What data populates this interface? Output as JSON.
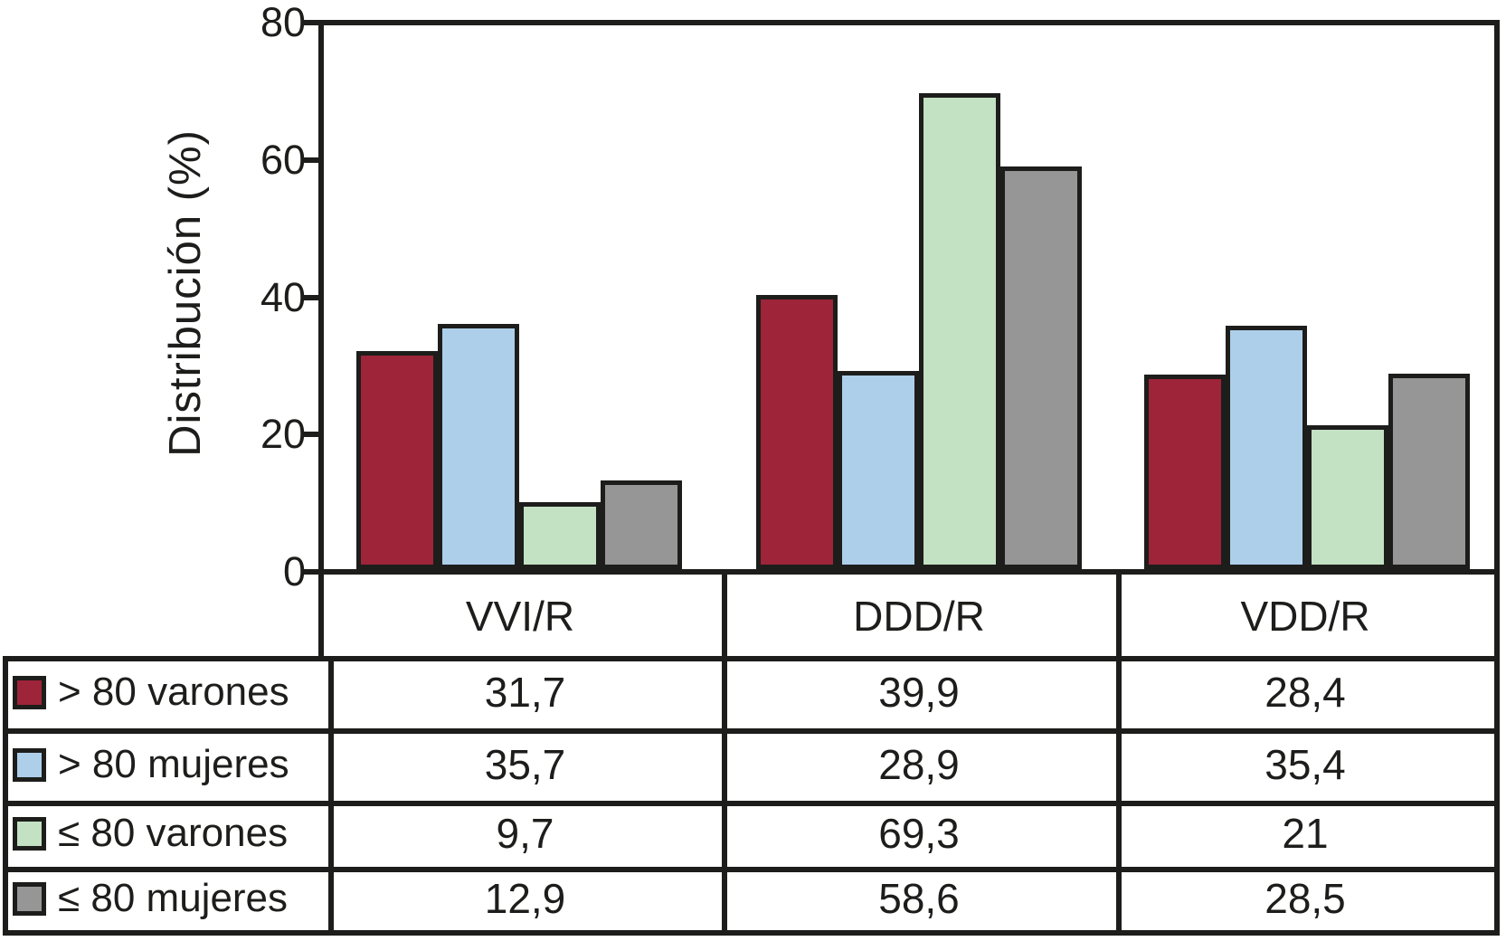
{
  "chart_data": {
    "type": "bar",
    "title": "",
    "xlabel": "",
    "ylabel": "Distribución (%)",
    "ylim": [
      0,
      80
    ],
    "yticks": [
      0,
      20,
      40,
      60,
      80
    ],
    "grid": false,
    "legend_position": "table-below-left-column",
    "categories": [
      "VVI/R",
      "DDD/R",
      "VDD/R"
    ],
    "series": [
      {
        "name": "> 80 varones",
        "color": "#9E2439",
        "values": [
          31.7,
          39.9,
          28.4
        ]
      },
      {
        "name": "> 80 mujeres",
        "color": "#ADCFEA",
        "values": [
          35.7,
          28.9,
          35.4
        ]
      },
      {
        "name": "≤ 80 varones",
        "color": "#C3E1C3",
        "values": [
          9.7,
          69.3,
          21
        ]
      },
      {
        "name": "≤ 80 mujeres",
        "color": "#969696",
        "values": [
          12.9,
          58.6,
          28.5
        ]
      }
    ]
  },
  "axis": {
    "y_tick_labels": [
      "0",
      "20",
      "40",
      "60",
      "80"
    ],
    "y_title": "Distribución (%)"
  },
  "table": {
    "column_headers": [
      "VVI/R",
      "DDD/R",
      "VDD/R"
    ],
    "rows": [
      {
        "label": "> 80 varones",
        "swatch_color": "#9E2439",
        "cells": [
          "31,7",
          "39,9",
          "28,4"
        ]
      },
      {
        "label": "> 80 mujeres",
        "swatch_color": "#ADCFEA",
        "cells": [
          "35,7",
          "28,9",
          "35,4"
        ]
      },
      {
        "label": "≤ 80 varones",
        "swatch_color": "#C3E1C3",
        "cells": [
          "9,7",
          "69,3",
          "21"
        ]
      },
      {
        "label": "≤ 80 mujeres",
        "swatch_color": "#969696",
        "cells": [
          "12,9",
          "58,6",
          "28,5"
        ]
      }
    ]
  },
  "colors": {
    "line": "#1d1d1b",
    "text": "#1d1d1b",
    "background": "#ffffff"
  }
}
